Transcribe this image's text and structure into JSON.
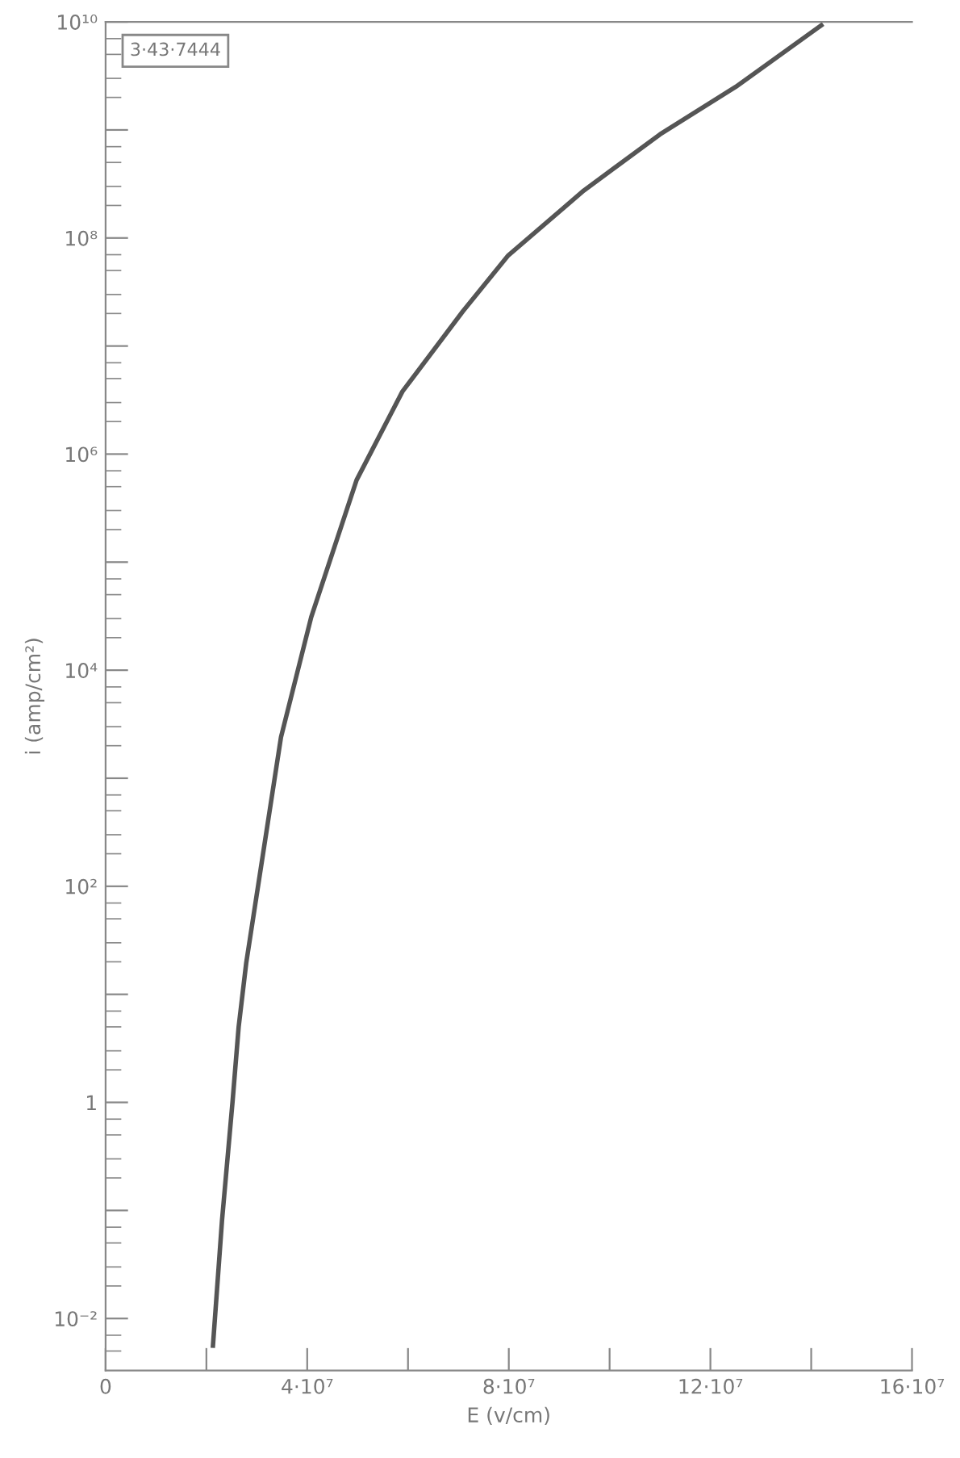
{
  "chart_data": {
    "type": "line",
    "xlabel": "E (v/cm)",
    "ylabel": "i (amp/cm²)",
    "log": "y",
    "grid": false,
    "marker": "none",
    "line_style": "solid",
    "annotations": [
      "3·43·7444"
    ],
    "xlim": [
      0,
      160000000
    ],
    "ylim": [
      0.0033,
      10000000000
    ],
    "xticks": [
      {
        "value": 0,
        "label": "0"
      },
      {
        "value": 20000000,
        "label": null
      },
      {
        "value": 40000000,
        "label": "4·10⁷"
      },
      {
        "value": 60000000,
        "label": null
      },
      {
        "value": 80000000,
        "label": "8·10⁷"
      },
      {
        "value": 100000000,
        "label": null
      },
      {
        "value": 120000000,
        "label": "12·10⁷"
      },
      {
        "value": 140000000,
        "label": null
      },
      {
        "value": 160000000,
        "label": "16·10⁷"
      }
    ],
    "yticks": [
      {
        "value": 0.01,
        "label": "10⁻²"
      },
      {
        "value": 0.1,
        "label": null
      },
      {
        "value": 1,
        "label": "1"
      },
      {
        "value": 10,
        "label": null
      },
      {
        "value": 100,
        "label": "10²"
      },
      {
        "value": 1000,
        "label": null
      },
      {
        "value": 10000,
        "label": "10⁴"
      },
      {
        "value": 100000,
        "label": null
      },
      {
        "value": 1000000,
        "label": "10⁶"
      },
      {
        "value": 10000000,
        "label": null
      },
      {
        "value": 100000000,
        "label": "10⁸"
      },
      {
        "value": 1000000000,
        "label": null
      },
      {
        "value": 10000000000,
        "label": "10¹⁰"
      }
    ],
    "series": [
      {
        "color": "#555555",
        "x": [
          21300000,
          23100000,
          25200000,
          26400000,
          27900000,
          34800000,
          40800000,
          49800000,
          58900000,
          70900000,
          79900000,
          94900000,
          110000000,
          125000000,
          142000000
        ],
        "values": [
          0.0056,
          0.081,
          1.03,
          5.0,
          19.5,
          2400,
          31000,
          575000,
          3800000,
          21000000,
          69000000,
          275000000,
          910000000,
          2500000000,
          9300000000
        ]
      }
    ]
  }
}
